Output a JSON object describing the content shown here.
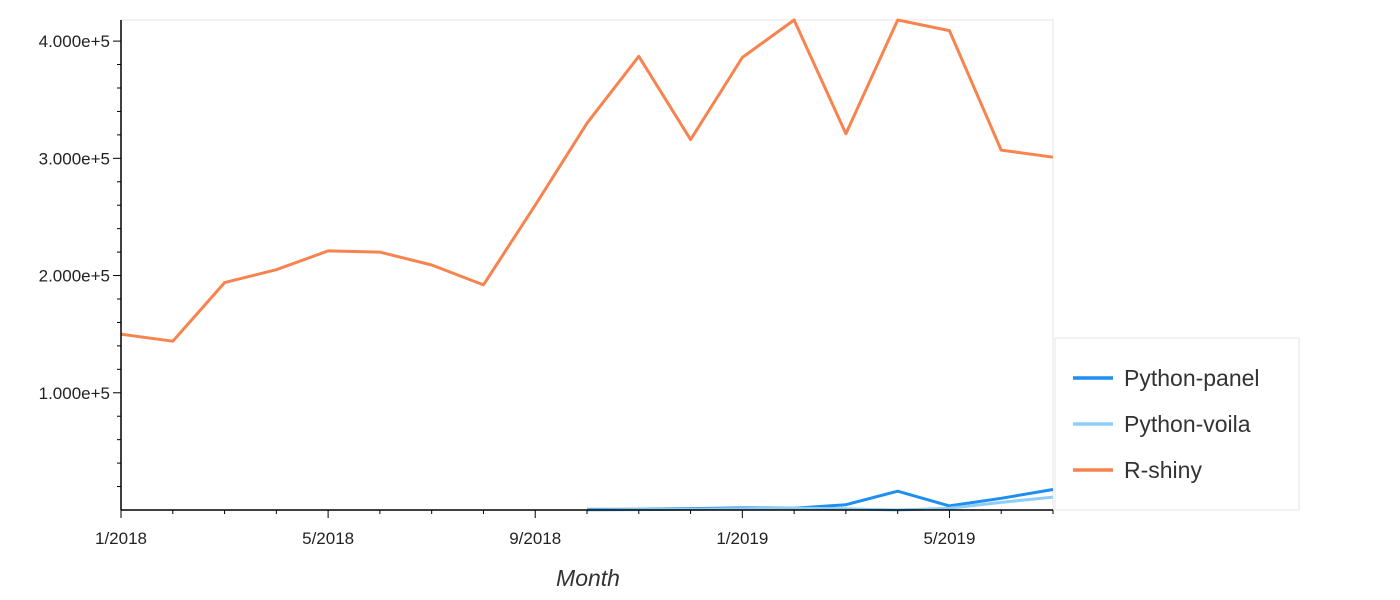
{
  "chart_data": {
    "type": "line",
    "title": "",
    "xlabel": "Month",
    "ylabel": "",
    "x_tick_labels": [
      "1/2018",
      "5/2018",
      "9/2018",
      "1/2019",
      "5/2019"
    ],
    "y_tick_labels": [
      "1.000e+5",
      "2.000e+5",
      "3.000e+5",
      "4.000e+5"
    ],
    "y_ticks": [
      100000,
      200000,
      300000,
      400000
    ],
    "ylim": [
      0,
      418000
    ],
    "xlim": [
      "2018-01",
      "2019-07"
    ],
    "grid": false,
    "legend_position": "bottom-right",
    "x": [
      "2018-01",
      "2018-02",
      "2018-03",
      "2018-04",
      "2018-05",
      "2018-06",
      "2018-07",
      "2018-08",
      "2018-09",
      "2018-10",
      "2018-11",
      "2018-12",
      "2019-01",
      "2019-02",
      "2019-03",
      "2019-04",
      "2019-05",
      "2019-06",
      "2019-07"
    ],
    "series": [
      {
        "name": "Python-panel",
        "color": "#1f8ef1",
        "values": [
          null,
          null,
          null,
          null,
          null,
          null,
          null,
          null,
          null,
          500,
          600,
          1200,
          1800,
          1500,
          4500,
          16000,
          3500,
          10000,
          17500
        ]
      },
      {
        "name": "Python-voila",
        "color": "#8fcff7",
        "values": [
          null,
          null,
          null,
          null,
          null,
          null,
          null,
          null,
          null,
          0,
          300,
          600,
          1000,
          1500,
          1000,
          0,
          1500,
          6500,
          11000
        ]
      },
      {
        "name": "R-shiny",
        "color": "#f7844e",
        "values": [
          150000,
          144000,
          194000,
          205000,
          221000,
          220000,
          209000,
          192000,
          260000,
          330000,
          387000,
          316000,
          386000,
          418000,
          321000,
          418000,
          409000,
          307000,
          301000
        ]
      }
    ]
  }
}
